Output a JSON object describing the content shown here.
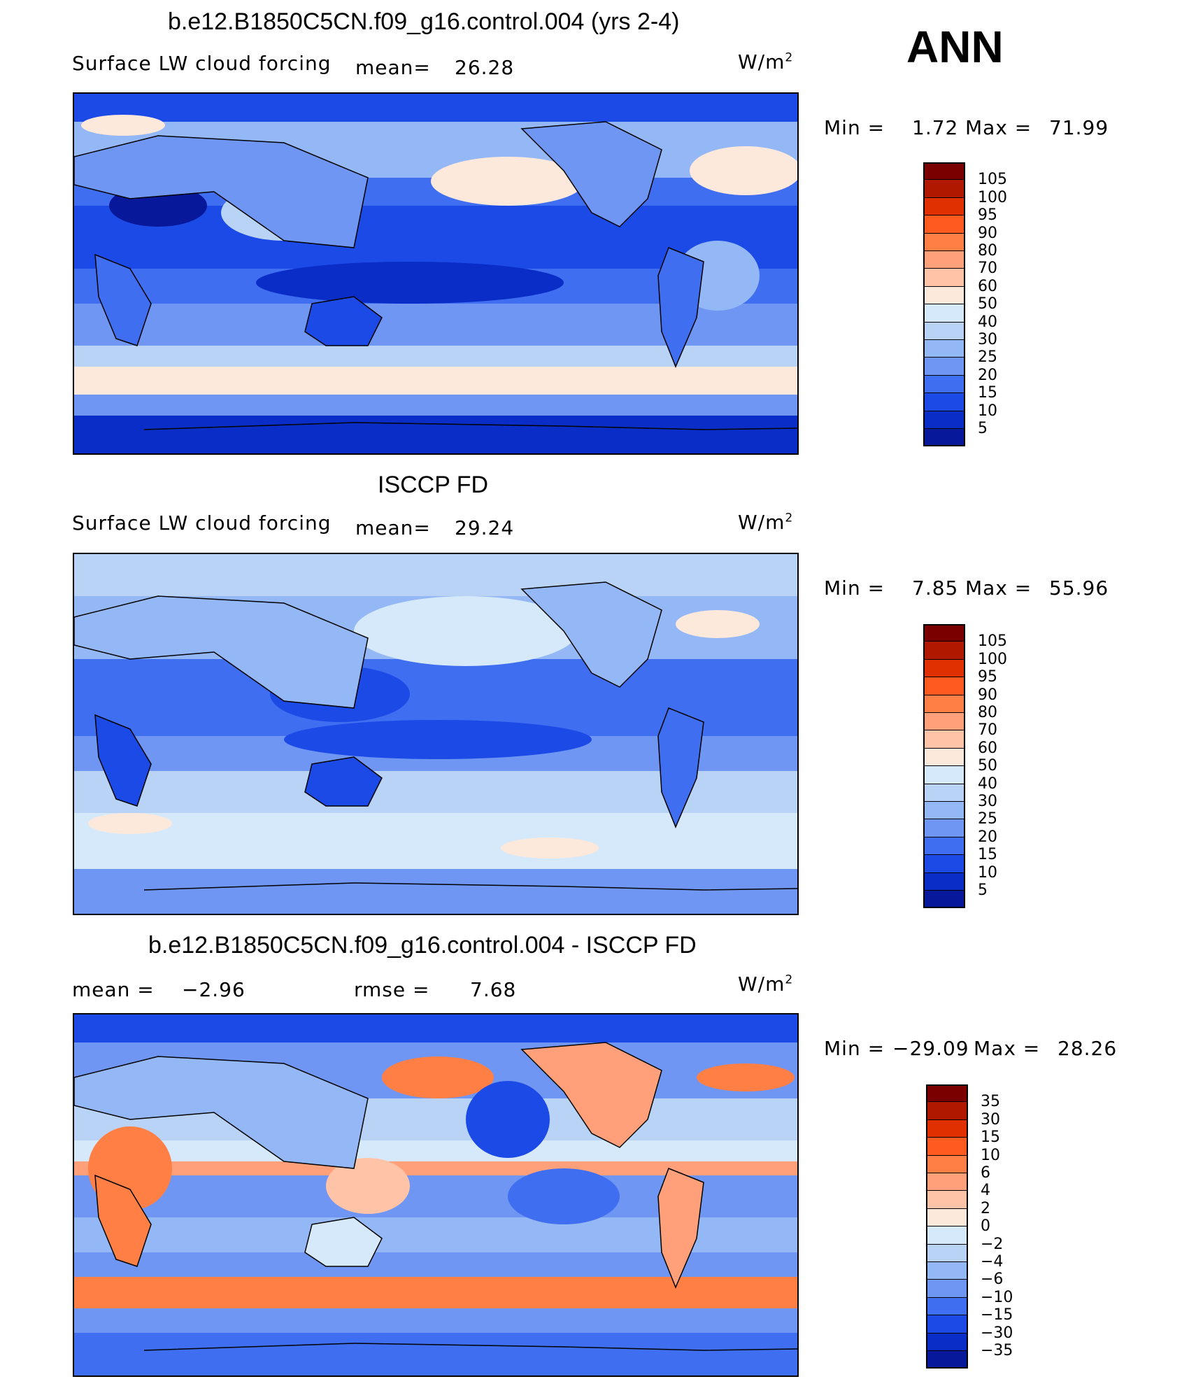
{
  "season": "ANN",
  "units_base": "W/m",
  "units_exp": "2",
  "panels": [
    {
      "title": "b.e12.B1850C5CN.f09_g16.control.004 (yrs 2-4)",
      "variable": "Surface LW cloud forcing",
      "stat1_label": "mean=",
      "stat1_value": "26.28",
      "minmax_label_min": "Min =",
      "min_value": "1.72",
      "minmax_label_max": "Max =",
      "max_value": "71.99",
      "levels": [
        "105",
        "100",
        "95",
        "90",
        "80",
        "70",
        "60",
        "50",
        "40",
        "30",
        "25",
        "20",
        "15",
        "10",
        "5"
      ]
    },
    {
      "title": "ISCCP FD",
      "variable": "Surface LW cloud forcing",
      "stat1_label": "mean=",
      "stat1_value": "29.24",
      "minmax_label_min": "Min =",
      "min_value": "7.85",
      "minmax_label_max": "Max =",
      "max_value": "55.96",
      "levels": [
        "105",
        "100",
        "95",
        "90",
        "80",
        "70",
        "60",
        "50",
        "40",
        "30",
        "25",
        "20",
        "15",
        "10",
        "5"
      ]
    },
    {
      "title": "b.e12.B1850C5CN.f09_g16.control.004 - ISCCP FD",
      "stat1_label": "mean =",
      "stat1_value": "−2.96",
      "stat2_label": "rmse =",
      "stat2_value": "7.68",
      "minmax_label_min": "Min =",
      "min_value": "−29.09",
      "minmax_label_max": "Max =",
      "max_value": "28.26",
      "levels": [
        "35",
        "30",
        "15",
        "10",
        "6",
        "4",
        "2",
        "0",
        "−2",
        "−4",
        "−6",
        "−10",
        "−15",
        "−30",
        "−35"
      ]
    }
  ],
  "colors": {
    "scale": [
      "#7a0000",
      "#b01800",
      "#e02f00",
      "#ff5a1f",
      "#ff7f45",
      "#ffa07a",
      "#ffc3a8",
      "#fde8dc",
      "#d6e9fb",
      "#b9d3f7",
      "#94b7f5",
      "#6e96f2",
      "#3f6ef0",
      "#1c4ae6",
      "#0a2dc8",
      "#07189a"
    ],
    "background": "#ffffff"
  }
}
